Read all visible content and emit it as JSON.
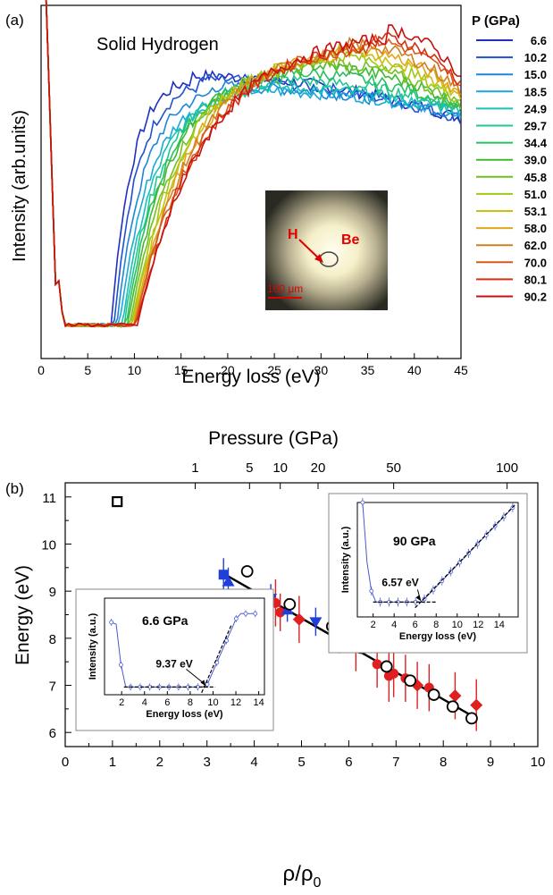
{
  "chart_data": [
    {
      "panel": "(a)",
      "type": "line",
      "annotation": "Solid Hydrogen",
      "xlabel": "Energy loss (eV)",
      "ylabel": "Intensity (arb.units)",
      "xlim": [
        0,
        45
      ],
      "x_ticks": [
        "0",
        "5",
        "10",
        "15",
        "20",
        "25",
        "30",
        "35",
        "40",
        "45"
      ],
      "legend_title": "P (GPa)",
      "legend_placement": "right",
      "series": [
        {
          "name": "6.6",
          "color": "#1f2fbf",
          "onset": 9.0,
          "peak_x": 16,
          "peak_y": 0.8,
          "end_y": 0.68
        },
        {
          "name": "10.2",
          "color": "#1f50d0",
          "onset": 9.3,
          "peak_x": 17,
          "peak_y": 0.79,
          "end_y": 0.68
        },
        {
          "name": "15.0",
          "color": "#1c86d8",
          "onset": 9.6,
          "peak_x": 18,
          "peak_y": 0.77,
          "end_y": 0.69
        },
        {
          "name": "18.5",
          "color": "#1aa8d8",
          "onset": 9.9,
          "peak_x": 20,
          "peak_y": 0.76,
          "end_y": 0.7
        },
        {
          "name": "24.9",
          "color": "#18c0b8",
          "onset": 10.2,
          "peak_x": 22,
          "peak_y": 0.77,
          "end_y": 0.7
        },
        {
          "name": "29.7",
          "color": "#20c890",
          "onset": 10.4,
          "peak_x": 24,
          "peak_y": 0.79,
          "end_y": 0.71
        },
        {
          "name": "34.4",
          "color": "#28c060",
          "onset": 10.6,
          "peak_x": 26,
          "peak_y": 0.81,
          "end_y": 0.71
        },
        {
          "name": "39.0",
          "color": "#40b830",
          "onset": 10.8,
          "peak_x": 28,
          "peak_y": 0.83,
          "end_y": 0.72
        },
        {
          "name": "45.8",
          "color": "#70c020",
          "onset": 11.0,
          "peak_x": 29,
          "peak_y": 0.84,
          "end_y": 0.72
        },
        {
          "name": "51.0",
          "color": "#a0c818",
          "onset": 11.2,
          "peak_x": 30,
          "peak_y": 0.86,
          "end_y": 0.73
        },
        {
          "name": "53.1",
          "color": "#c8c010",
          "onset": 11.3,
          "peak_x": 31,
          "peak_y": 0.87,
          "end_y": 0.74
        },
        {
          "name": "58.0",
          "color": "#e0a818",
          "onset": 11.4,
          "peak_x": 32,
          "peak_y": 0.88,
          "end_y": 0.75
        },
        {
          "name": "62.0",
          "color": "#d08020",
          "onset": 11.5,
          "peak_x": 33,
          "peak_y": 0.89,
          "end_y": 0.76
        },
        {
          "name": "70.0",
          "color": "#d85818",
          "onset": 11.6,
          "peak_x": 35,
          "peak_y": 0.9,
          "end_y": 0.77
        },
        {
          "name": "80.1",
          "color": "#d83010",
          "onset": 11.7,
          "peak_x": 36,
          "peak_y": 0.91,
          "end_y": 0.78
        },
        {
          "name": "90.2",
          "color": "#c81010",
          "onset": 11.8,
          "peak_x": 37,
          "peak_y": 0.93,
          "end_y": 0.8
        }
      ],
      "inset_image": {
        "labels": [
          "H",
          "Be",
          "100 μm"
        ]
      }
    },
    {
      "panel": "(b)",
      "type": "scatter",
      "xlabel": "ρ/ρ0",
      "ylabel": "Energy (eV)",
      "top_axis_label": "Pressure (GPa)",
      "xlim": [
        0,
        10
      ],
      "ylim": [
        5.7,
        11.3
      ],
      "x_ticks": [
        "0",
        "1",
        "2",
        "3",
        "4",
        "5",
        "6",
        "7",
        "8",
        "9",
        "10"
      ],
      "y_ticks": [
        "6",
        "7",
        "8",
        "9",
        "10",
        "11"
      ],
      "top_ticks": [
        {
          "label": "1",
          "rho": 2.75
        },
        {
          "label": "5",
          "rho": 3.9
        },
        {
          "label": "10",
          "rho": 4.55
        },
        {
          "label": "20",
          "rho": 5.35
        },
        {
          "label": "50",
          "rho": 6.95
        },
        {
          "label": "100",
          "rho": 9.35
        }
      ],
      "fit_line": {
        "x": [
          3.3,
          8.7
        ],
        "y": [
          9.4,
          6.3
        ]
      },
      "open_square": [
        {
          "x": 1.1,
          "y": 10.9
        }
      ],
      "blue_square": [
        {
          "x": 3.35,
          "y": 9.35,
          "err": 0.35
        },
        {
          "x": 5.8,
          "y": 7.98,
          "err": 0.3
        }
      ],
      "blue_up_triangle": [
        {
          "x": 3.45,
          "y": 9.2,
          "err": 0.3
        },
        {
          "x": 4.7,
          "y": 8.6,
          "err": 0.25
        }
      ],
      "blue_down_triangle": [
        {
          "x": 4.35,
          "y": 8.85,
          "err": 0.3
        },
        {
          "x": 5.3,
          "y": 8.35,
          "err": 0.3
        },
        {
          "x": 5.75,
          "y": 8.05,
          "err": 0.3
        }
      ],
      "open_circle": [
        {
          "x": 3.85,
          "y": 9.42
        },
        {
          "x": 4.75,
          "y": 8.72
        },
        {
          "x": 5.65,
          "y": 8.25
        },
        {
          "x": 6.25,
          "y": 7.8
        },
        {
          "x": 6.8,
          "y": 7.4
        },
        {
          "x": 7.3,
          "y": 7.1
        },
        {
          "x": 7.8,
          "y": 6.8
        },
        {
          "x": 8.2,
          "y": 6.55
        },
        {
          "x": 8.6,
          "y": 6.3
        }
      ],
      "red_circle": [
        {
          "x": 4.45,
          "y": 8.75,
          "err": 0.5
        },
        {
          "x": 4.55,
          "y": 8.55,
          "err": 0.4
        },
        {
          "x": 5.8,
          "y": 8.2,
          "err": 0.45
        },
        {
          "x": 6.15,
          "y": 7.8,
          "err": 0.5
        },
        {
          "x": 6.6,
          "y": 7.45,
          "err": 0.5
        },
        {
          "x": 6.85,
          "y": 7.2,
          "err": 0.55
        },
        {
          "x": 6.95,
          "y": 7.25,
          "err": 0.5
        },
        {
          "x": 7.2,
          "y": 7.15,
          "err": 0.5
        },
        {
          "x": 7.7,
          "y": 6.95,
          "err": 0.5
        }
      ],
      "red_diamond": [
        {
          "x": 4.95,
          "y": 8.4,
          "err": 0.5
        },
        {
          "x": 7.45,
          "y": 7.0,
          "err": 0.5
        },
        {
          "x": 8.25,
          "y": 6.78,
          "err": 0.5
        },
        {
          "x": 8.7,
          "y": 6.58,
          "err": 0.55
        }
      ],
      "insets": [
        {
          "title": "6.6 GPa",
          "threshold_label": "9.37 eV",
          "threshold_x": 9.37,
          "xlabel": "Energy loss (eV)",
          "ylabel": "Intensity (a.u.)",
          "xlim": [
            0.5,
            14.5
          ],
          "x_ticks": [
            "2",
            "4",
            "6",
            "8",
            "10",
            "12",
            "14"
          ]
        },
        {
          "title": "90 GPa",
          "threshold_label": "6.57 eV",
          "threshold_x": 6.57,
          "xlabel": "Energy loss (eV)",
          "ylabel": "Intensity (a.u.)",
          "xlim": [
            0.5,
            15.8
          ],
          "x_ticks": [
            "2",
            "4",
            "6",
            "8",
            "10",
            "12",
            "14"
          ]
        }
      ]
    }
  ]
}
